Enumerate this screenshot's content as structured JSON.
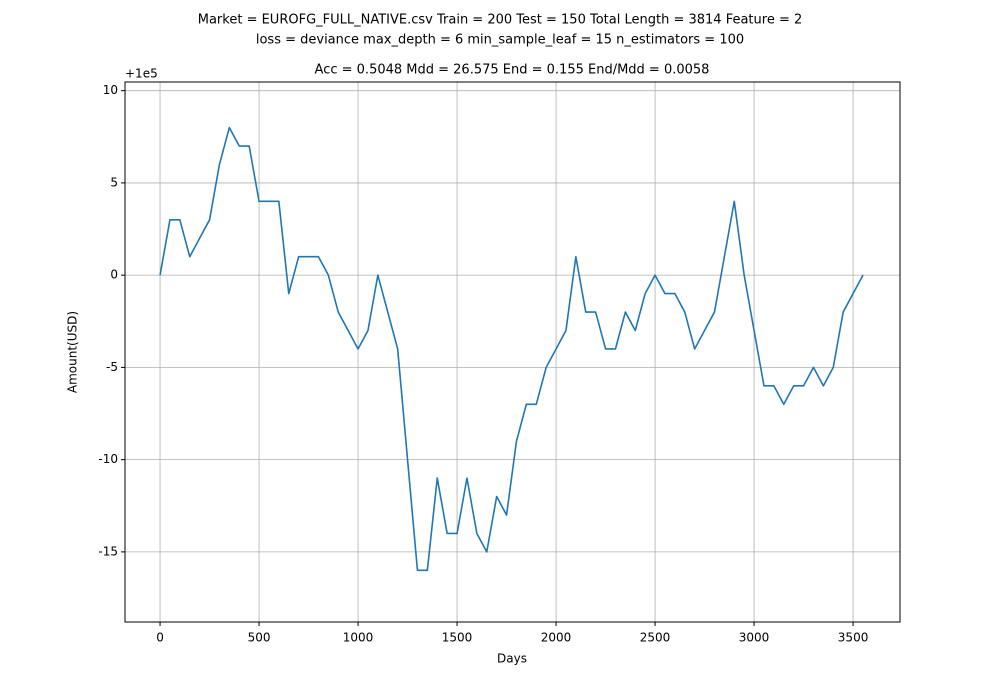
{
  "chart_data": {
    "type": "line",
    "suptitle": [
      "Market = EUROFG_FULL_NATIVE.csv  Train = 200  Test = 150  Total Length = 3814  Feature = 2",
      "loss = deviance  max_depth = 6  min_sample_leaf = 15  n_estimators = 100"
    ],
    "title": "Acc = 0.5048  Mdd = 26.575  End = 0.155  End/Mdd = 0.0058",
    "x_label": "Days",
    "y_label": "Amount(USD)",
    "y_offset_label": "+1e5",
    "x": [
      0,
      50,
      100,
      150,
      200,
      250,
      300,
      350,
      400,
      450,
      500,
      550,
      600,
      650,
      700,
      750,
      800,
      850,
      900,
      950,
      1000,
      1050,
      1100,
      1150,
      1200,
      1250,
      1300,
      1350,
      1400,
      1450,
      1500,
      1550,
      1600,
      1650,
      1700,
      1750,
      1800,
      1850,
      1900,
      1950,
      2000,
      2050,
      2100,
      2150,
      2200,
      2250,
      2300,
      2350,
      2400,
      2450,
      2500,
      2550,
      2600,
      2650,
      2700,
      2750,
      2800,
      2850,
      2900,
      2950,
      3000,
      3050,
      3100,
      3150,
      3200,
      3250,
      3300,
      3350,
      3400,
      3450,
      3500,
      3550
    ],
    "values": [
      0,
      3,
      3,
      1,
      2,
      3,
      6,
      8,
      7,
      7,
      4,
      4,
      4,
      -1,
      1,
      1,
      1,
      0,
      -2,
      -3,
      -4,
      -3,
      0,
      -2,
      -4,
      -10,
      -16,
      -16,
      -11,
      -14,
      -14,
      -11,
      -14,
      -15,
      -12,
      -13,
      -9,
      -7,
      -7,
      -5,
      -4,
      -3,
      1,
      -2,
      -2,
      -4,
      -4,
      -2,
      -3,
      -1,
      0,
      -1,
      -1,
      -2,
      -4,
      -3,
      -2,
      1,
      4,
      0,
      -3,
      -6,
      -6,
      -7,
      -6,
      -6,
      -5,
      -6,
      -5,
      -2,
      -1,
      0
    ],
    "color": "#1f77b4",
    "xlim": [
      -177,
      3737
    ],
    "ylim": [
      -18.8,
      10.47
    ],
    "xticks": [
      0,
      500,
      1000,
      1500,
      2000,
      2500,
      3000,
      3500
    ],
    "yticks": [
      -15,
      -10,
      -5,
      0,
      5,
      10
    ],
    "grid": true
  }
}
